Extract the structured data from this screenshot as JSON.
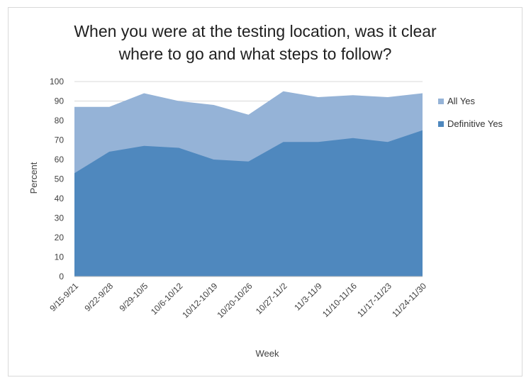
{
  "chart_data": {
    "type": "area",
    "title_lines": [
      "When you were at the testing location, was it clear",
      "where to go and what steps to follow?"
    ],
    "xlabel": "Week",
    "ylabel": "Percent",
    "ylim": [
      0,
      100
    ],
    "yticks": [
      0,
      10,
      20,
      30,
      40,
      50,
      60,
      70,
      80,
      90,
      100
    ],
    "grid": true,
    "legend_position": "right",
    "categories": [
      "9/15-9/21",
      "9/22-9/28",
      "9/29-10/5",
      "10/6-10/12",
      "10/12-10/19",
      "10/20-10/26",
      "10/27-11/2",
      "11/3-11/9",
      "11/10-11/16",
      "11/17-11/23",
      "11/24-11/30"
    ],
    "series": [
      {
        "name": "All Yes",
        "color": "#95b3d7",
        "values": [
          87,
          87,
          94,
          90,
          88,
          83,
          95,
          92,
          93,
          92,
          94
        ]
      },
      {
        "name": "Definitive Yes",
        "color": "#4f88be",
        "values": [
          53,
          64,
          67,
          66,
          60,
          59,
          69,
          69,
          71,
          69,
          75
        ]
      }
    ]
  }
}
